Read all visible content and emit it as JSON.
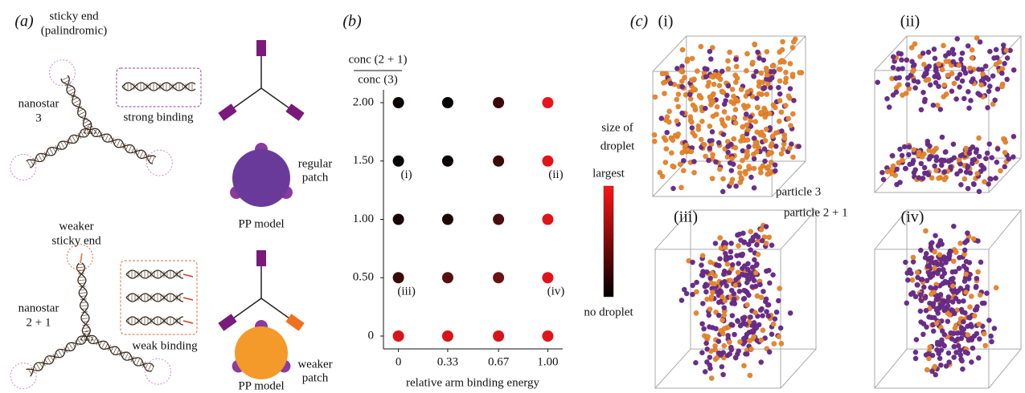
{
  "panel_a": {
    "label": "(a)",
    "top": {
      "sticky_end": [
        "sticky end",
        "(palindromic)"
      ],
      "nanostar": [
        "nanostar",
        "3"
      ],
      "binding": "strong binding",
      "patch": [
        "regular",
        "patch"
      ],
      "model": "PP model"
    },
    "bottom": {
      "sticky_end": [
        "weaker",
        "sticky end"
      ],
      "nanostar": [
        "nanostar",
        "2 + 1"
      ],
      "binding": "weak binding",
      "patch": [
        "weaker",
        "patch"
      ],
      "model": "PP model"
    }
  },
  "chart_data": {
    "type": "scatter",
    "label": "(b)",
    "y_label": [
      "conc (2 + 1)",
      "conc (3)"
    ],
    "x_label": "relative arm binding energy",
    "x": [
      0,
      0.33,
      0.67,
      1,
      0,
      0.33,
      0.67,
      1,
      0,
      0.33,
      0.67,
      1,
      0,
      0.33,
      0.67,
      1,
      0,
      0.33,
      0.67,
      1
    ],
    "y": [
      2,
      2,
      2,
      2,
      1.5,
      1.5,
      1.5,
      1.5,
      1,
      1,
      1,
      1,
      0.5,
      0.5,
      0.5,
      0.5,
      0,
      0,
      0,
      0
    ],
    "colors": [
      "#0a0202",
      "#050101",
      "#3a0a0a",
      "#e8141a",
      "#050101",
      "#0a0202",
      "#3b0a0a",
      "#e01318",
      "#1a0505",
      "#1f0606",
      "#4a0d0d",
      "#e01318",
      "#3a0a0a",
      "#550f0f",
      "#6a1212",
      "#e01318",
      "#d81418",
      "#d81418",
      "#d81418",
      "#e01318"
    ],
    "xlim": [
      -0.1,
      1.1
    ],
    "ylim": [
      -0.11,
      2.11
    ],
    "xticks": [
      0,
      0.33,
      0.67,
      {
        "value": 1,
        "label": "1.00"
      }
    ],
    "yticks": [
      0,
      {
        "value": 0.5,
        "label": "0.50"
      },
      {
        "value": 1,
        "label": "1.00"
      },
      {
        "value": 1.5,
        "label": "1.50"
      },
      {
        "value": 2,
        "label": "2.00"
      }
    ],
    "annotations": [
      {
        "text": "(i)",
        "x": 0,
        "y": 1.5
      },
      {
        "text": "(ii)",
        "x": 1,
        "y": 1.5
      },
      {
        "text": "(iii)",
        "x": 0,
        "y": 0.5
      },
      {
        "text": "(iv)",
        "x": 1,
        "y": 0.5
      }
    ],
    "colorbar": {
      "title": [
        "size of",
        "droplet"
      ],
      "max_label": "largest",
      "min_label": "no droplet",
      "colors": [
        "#000000",
        "#ff1414"
      ]
    }
  },
  "panel_c": {
    "label": "(c)",
    "snapshots": [
      "(i)",
      "(ii)",
      "(iii)",
      "(iv)"
    ],
    "legend": [
      {
        "name": "particle 3",
        "color": "#6b2d8b"
      },
      {
        "name": "particle 2 + 1",
        "color": "#e8862c"
      }
    ]
  }
}
